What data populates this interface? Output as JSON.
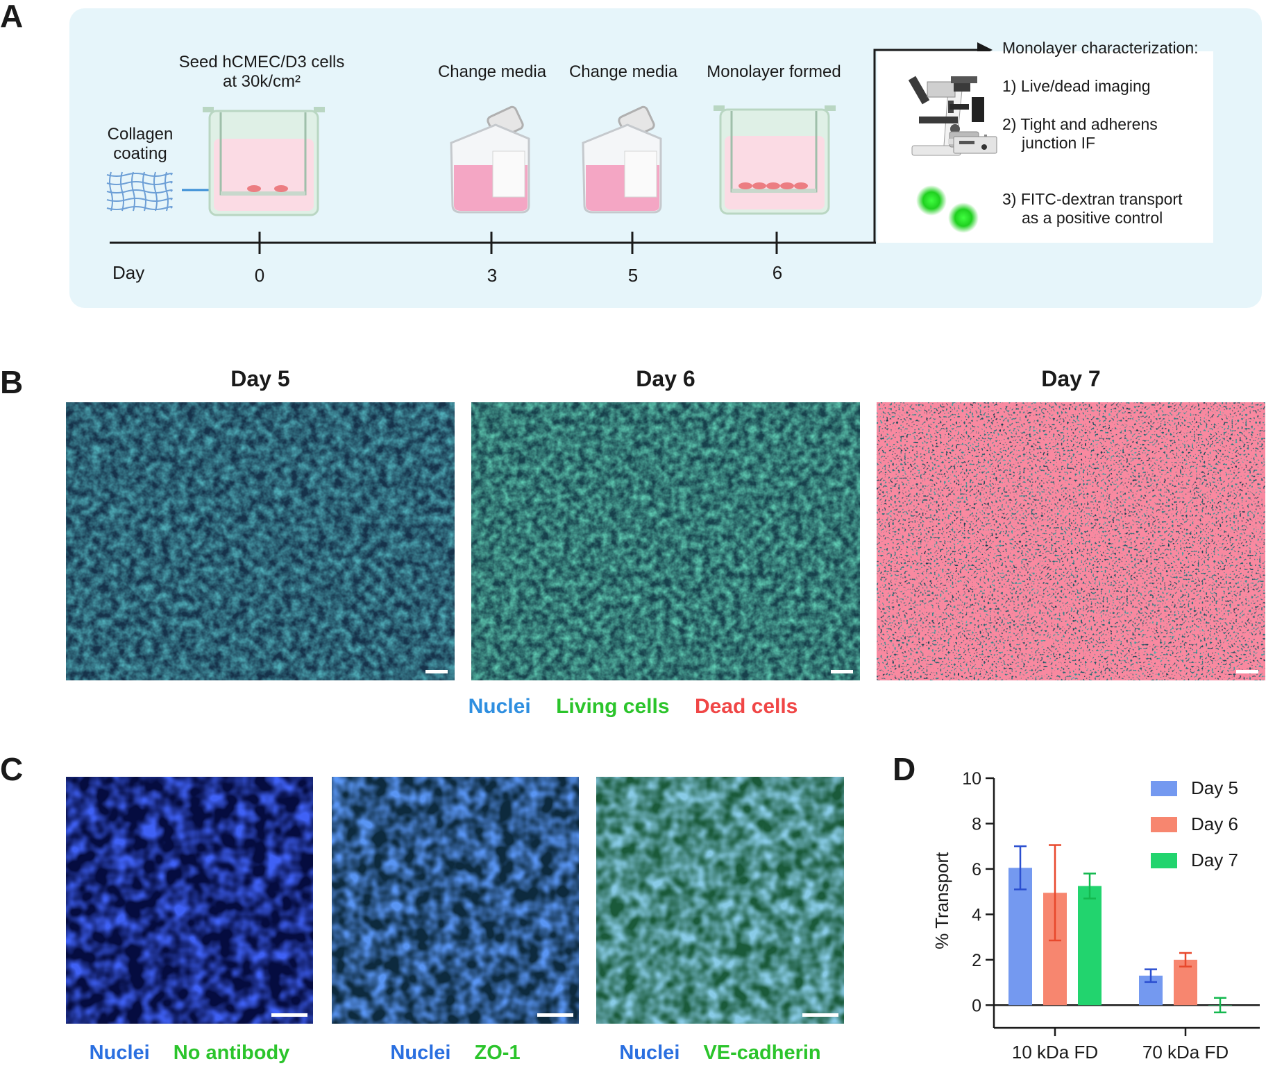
{
  "panelA": {
    "letter": "A",
    "timeline_label": "Day",
    "steps": [
      {
        "label_line1": "Seed hCMEC/D3 cells",
        "label_line2": "at 30k/cm²",
        "day": "0"
      },
      {
        "label_line1": "Change media",
        "day": "3"
      },
      {
        "label_line1": "Change media",
        "day": "5"
      },
      {
        "label_line1": "Monolayer formed",
        "day": "6"
      }
    ],
    "collagen_line1": "Collagen",
    "collagen_line2": "coating",
    "characterization": {
      "title": "Monolayer characterization:",
      "item1": "1) Live/dead imaging",
      "item2_line1": "2) Tight and adherens",
      "item2_line2": "junction IF",
      "item3_line1": "3) FITC-dextran transport",
      "item3_line2": "as a positive control"
    },
    "colors": {
      "panel_bg": "#e6f5fa",
      "media_pink": "#f4a6c4"
    }
  },
  "panelB": {
    "letter": "B",
    "titles": [
      "Day 5",
      "Day 6",
      "Day 7"
    ],
    "legend": [
      {
        "text": "Nuclei",
        "color": "#2f8fe0"
      },
      {
        "text": "Living cells",
        "color": "#2bc42b"
      },
      {
        "text": "Dead cells",
        "color": "#f04646"
      }
    ]
  },
  "panelC": {
    "letter": "C",
    "captions": [
      {
        "a": "Nuclei",
        "b": "No antibody"
      },
      {
        "a": "Nuclei",
        "b": "ZO-1"
      },
      {
        "a": "Nuclei",
        "b": "VE-cadherin"
      }
    ],
    "colors": {
      "nuclei": "#2a6fe0",
      "stain": "#2bc42b"
    }
  },
  "panelD": {
    "letter": "D",
    "chart_data": {
      "type": "bar",
      "categories": [
        "10 kDa FD",
        "70 kDa FD"
      ],
      "ylabel": "% Transport",
      "ylim": [
        -1,
        10
      ],
      "yticks": [
        "10",
        "8",
        "6",
        "4",
        "2",
        "0"
      ],
      "series": [
        {
          "name": "Day 5",
          "color": "#7499f0",
          "values": [
            6.05,
            1.3
          ],
          "errors": [
            0.95,
            0.28
          ]
        },
        {
          "name": "Day 6",
          "color": "#f7866f",
          "values": [
            4.95,
            2.0
          ],
          "errors": [
            2.1,
            0.3
          ]
        },
        {
          "name": "Day 7",
          "color": "#22d46e",
          "values": [
            5.25,
            0.0
          ],
          "errors": [
            0.55,
            0.32
          ]
        }
      ],
      "legend_position": "top-right"
    }
  }
}
